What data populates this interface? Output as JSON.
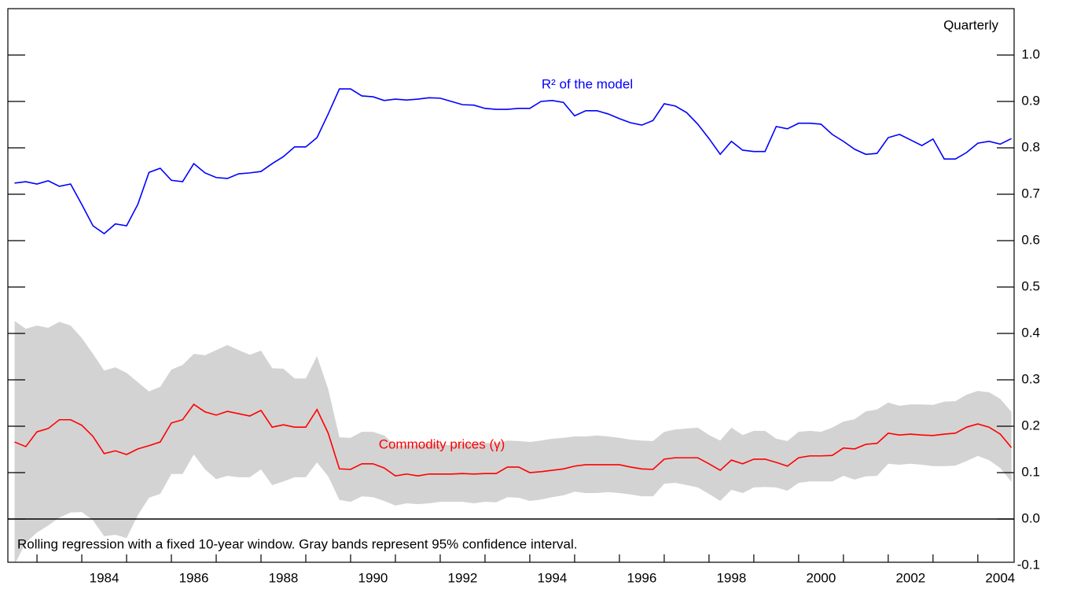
{
  "chart_data": {
    "type": "line",
    "subtitle": "Quarterly",
    "note": "Rolling regression with a fixed 10-year window. Gray bands represent 95% confidence interval.",
    "xlim": [
      1982.35,
      2004.81
    ],
    "ylim": [
      -0.1,
      1.1
    ],
    "yticks": [
      -0.1,
      {
        "value": 0,
        "label": "0.0"
      },
      0.1,
      0.2,
      0.3,
      0.4,
      0.5,
      0.6,
      0.7,
      0.8,
      0.9,
      {
        "value": 1,
        "label": "1.0"
      }
    ],
    "xticks": [
      1983,
      1984,
      1985,
      1986,
      1987,
      1988,
      1989,
      1990,
      1991,
      1992,
      1993,
      1994,
      1995,
      1996,
      1997,
      1998,
      1999,
      2000,
      2001,
      2002,
      2003,
      2004
    ],
    "xlabels": [
      {
        "value": 1984.5,
        "label": "1984"
      },
      {
        "value": 1986.5,
        "label": "1986"
      },
      {
        "value": 1988.5,
        "label": "1988"
      },
      {
        "value": 1990.5,
        "label": "1990"
      },
      {
        "value": 1992.5,
        "label": "1992"
      },
      {
        "value": 1994.5,
        "label": "1994"
      },
      {
        "value": 1996.5,
        "label": "1996"
      },
      {
        "value": 1998.5,
        "label": "1998"
      },
      {
        "value": 2000.5,
        "label": "2000"
      },
      {
        "value": 2002.5,
        "label": "2002"
      },
      {
        "value": 2004.5,
        "label": "2004"
      }
    ],
    "zero_line": true,
    "x": [
      1982.5,
      1982.75,
      1983,
      1983.25,
      1983.5,
      1983.75,
      1984,
      1984.25,
      1984.5,
      1984.75,
      1985,
      1985.25,
      1985.5,
      1985.75,
      1986,
      1986.25,
      1986.5,
      1986.75,
      1987,
      1987.25,
      1987.5,
      1987.75,
      1988,
      1988.25,
      1988.5,
      1988.75,
      1989,
      1989.25,
      1989.5,
      1989.75,
      1990,
      1990.25,
      1990.5,
      1990.75,
      1991,
      1991.25,
      1991.5,
      1991.75,
      1992,
      1992.25,
      1992.5,
      1992.75,
      1993,
      1993.25,
      1993.5,
      1993.75,
      1994,
      1994.25,
      1994.5,
      1994.75,
      1995,
      1995.25,
      1995.5,
      1995.75,
      1996,
      1996.25,
      1996.5,
      1996.75,
      1997,
      1997.25,
      1997.5,
      1997.75,
      1998,
      1998.25,
      1998.5,
      1998.75,
      1999,
      1999.25,
      1999.5,
      1999.75,
      2000,
      2000.25,
      2000.5,
      2000.75,
      2001,
      2001.25,
      2001.5,
      2001.75,
      2002,
      2002.25,
      2002.5,
      2002.75,
      2003,
      2003.25,
      2003.5,
      2003.75,
      2004,
      2004.25,
      2004.5,
      2004.75
    ],
    "series": [
      {
        "name": "R² of the model",
        "color": "#0000ff",
        "values": [
          0.724,
          0.727,
          0.722,
          0.729,
          0.717,
          0.722,
          0.678,
          0.632,
          0.615,
          0.636,
          0.632,
          0.678,
          0.747,
          0.756,
          0.73,
          0.727,
          0.766,
          0.746,
          0.736,
          0.734,
          0.744,
          0.746,
          0.749,
          0.766,
          0.781,
          0.802,
          0.802,
          0.822,
          0.873,
          0.927,
          0.927,
          0.912,
          0.91,
          0.902,
          0.905,
          0.903,
          0.905,
          0.908,
          0.907,
          0.9,
          0.893,
          0.892,
          0.885,
          0.883,
          0.883,
          0.885,
          0.885,
          0.9,
          0.902,
          0.898,
          0.869,
          0.88,
          0.88,
          0.873,
          0.863,
          0.854,
          0.849,
          0.859,
          0.895,
          0.89,
          0.876,
          0.851,
          0.82,
          0.786,
          0.814,
          0.795,
          0.792,
          0.792,
          0.846,
          0.841,
          0.853,
          0.853,
          0.851,
          0.829,
          0.814,
          0.797,
          0.786,
          0.788,
          0.822,
          0.829,
          0.817,
          0.805,
          0.819,
          0.776,
          0.776,
          0.79,
          0.81,
          0.814,
          0.808,
          0.82
        ]
      },
      {
        "name": "Commodity prices (γ)",
        "color": "#ff0000",
        "values": [
          0.166,
          0.156,
          0.188,
          0.195,
          0.214,
          0.214,
          0.202,
          0.178,
          0.141,
          0.147,
          0.139,
          0.151,
          0.158,
          0.166,
          0.207,
          0.214,
          0.247,
          0.231,
          0.224,
          0.232,
          0.227,
          0.222,
          0.234,
          0.198,
          0.203,
          0.198,
          0.198,
          0.236,
          0.185,
          0.108,
          0.107,
          0.119,
          0.119,
          0.11,
          0.093,
          0.097,
          0.093,
          0.097,
          0.097,
          0.097,
          0.098,
          0.097,
          0.098,
          0.098,
          0.112,
          0.112,
          0.1,
          0.102,
          0.105,
          0.108,
          0.114,
          0.117,
          0.117,
          0.117,
          0.117,
          0.112,
          0.108,
          0.107,
          0.129,
          0.132,
          0.132,
          0.132,
          0.119,
          0.105,
          0.127,
          0.119,
          0.129,
          0.129,
          0.122,
          0.114,
          0.132,
          0.136,
          0.136,
          0.137,
          0.153,
          0.151,
          0.161,
          0.163,
          0.185,
          0.181,
          0.183,
          0.181,
          0.18,
          0.183,
          0.185,
          0.198,
          0.205,
          0.198,
          0.183,
          0.154
        ],
        "band": {
          "color": "#d3d3d3",
          "upper": [
            0.427,
            0.41,
            0.417,
            0.412,
            0.425,
            0.417,
            0.39,
            0.356,
            0.32,
            0.327,
            0.315,
            0.295,
            0.275,
            0.285,
            0.322,
            0.332,
            0.356,
            0.353,
            0.364,
            0.375,
            0.364,
            0.354,
            0.363,
            0.325,
            0.324,
            0.303,
            0.303,
            0.351,
            0.28,
            0.176,
            0.175,
            0.188,
            0.188,
            0.18,
            0.158,
            0.159,
            0.159,
            0.163,
            0.161,
            0.159,
            0.163,
            0.163,
            0.164,
            0.163,
            0.169,
            0.168,
            0.166,
            0.169,
            0.173,
            0.175,
            0.178,
            0.178,
            0.18,
            0.178,
            0.175,
            0.171,
            0.169,
            0.168,
            0.188,
            0.193,
            0.195,
            0.197,
            0.181,
            0.169,
            0.197,
            0.181,
            0.19,
            0.19,
            0.173,
            0.168,
            0.188,
            0.19,
            0.188,
            0.197,
            0.21,
            0.215,
            0.232,
            0.236,
            0.251,
            0.244,
            0.247,
            0.247,
            0.246,
            0.253,
            0.254,
            0.268,
            0.276,
            0.273,
            0.259,
            0.231
          ],
          "lower": [
            -0.098,
            -0.051,
            -0.029,
            -0.014,
            0.003,
            0.014,
            0.015,
            -0.003,
            -0.037,
            -0.034,
            -0.041,
            0.008,
            0.046,
            0.054,
            0.097,
            0.097,
            0.139,
            0.107,
            0.086,
            0.093,
            0.09,
            0.09,
            0.107,
            0.073,
            0.081,
            0.09,
            0.09,
            0.122,
            0.092,
            0.041,
            0.037,
            0.049,
            0.047,
            0.039,
            0.029,
            0.034,
            0.032,
            0.034,
            0.037,
            0.037,
            0.037,
            0.034,
            0.037,
            0.036,
            0.047,
            0.046,
            0.039,
            0.042,
            0.047,
            0.051,
            0.059,
            0.056,
            0.056,
            0.058,
            0.056,
            0.053,
            0.049,
            0.049,
            0.076,
            0.078,
            0.073,
            0.068,
            0.054,
            0.039,
            0.063,
            0.056,
            0.068,
            0.069,
            0.068,
            0.061,
            0.078,
            0.081,
            0.081,
            0.081,
            0.093,
            0.085,
            0.092,
            0.093,
            0.119,
            0.117,
            0.119,
            0.117,
            0.114,
            0.114,
            0.115,
            0.125,
            0.136,
            0.127,
            0.11,
            0.08
          ]
        }
      }
    ]
  }
}
